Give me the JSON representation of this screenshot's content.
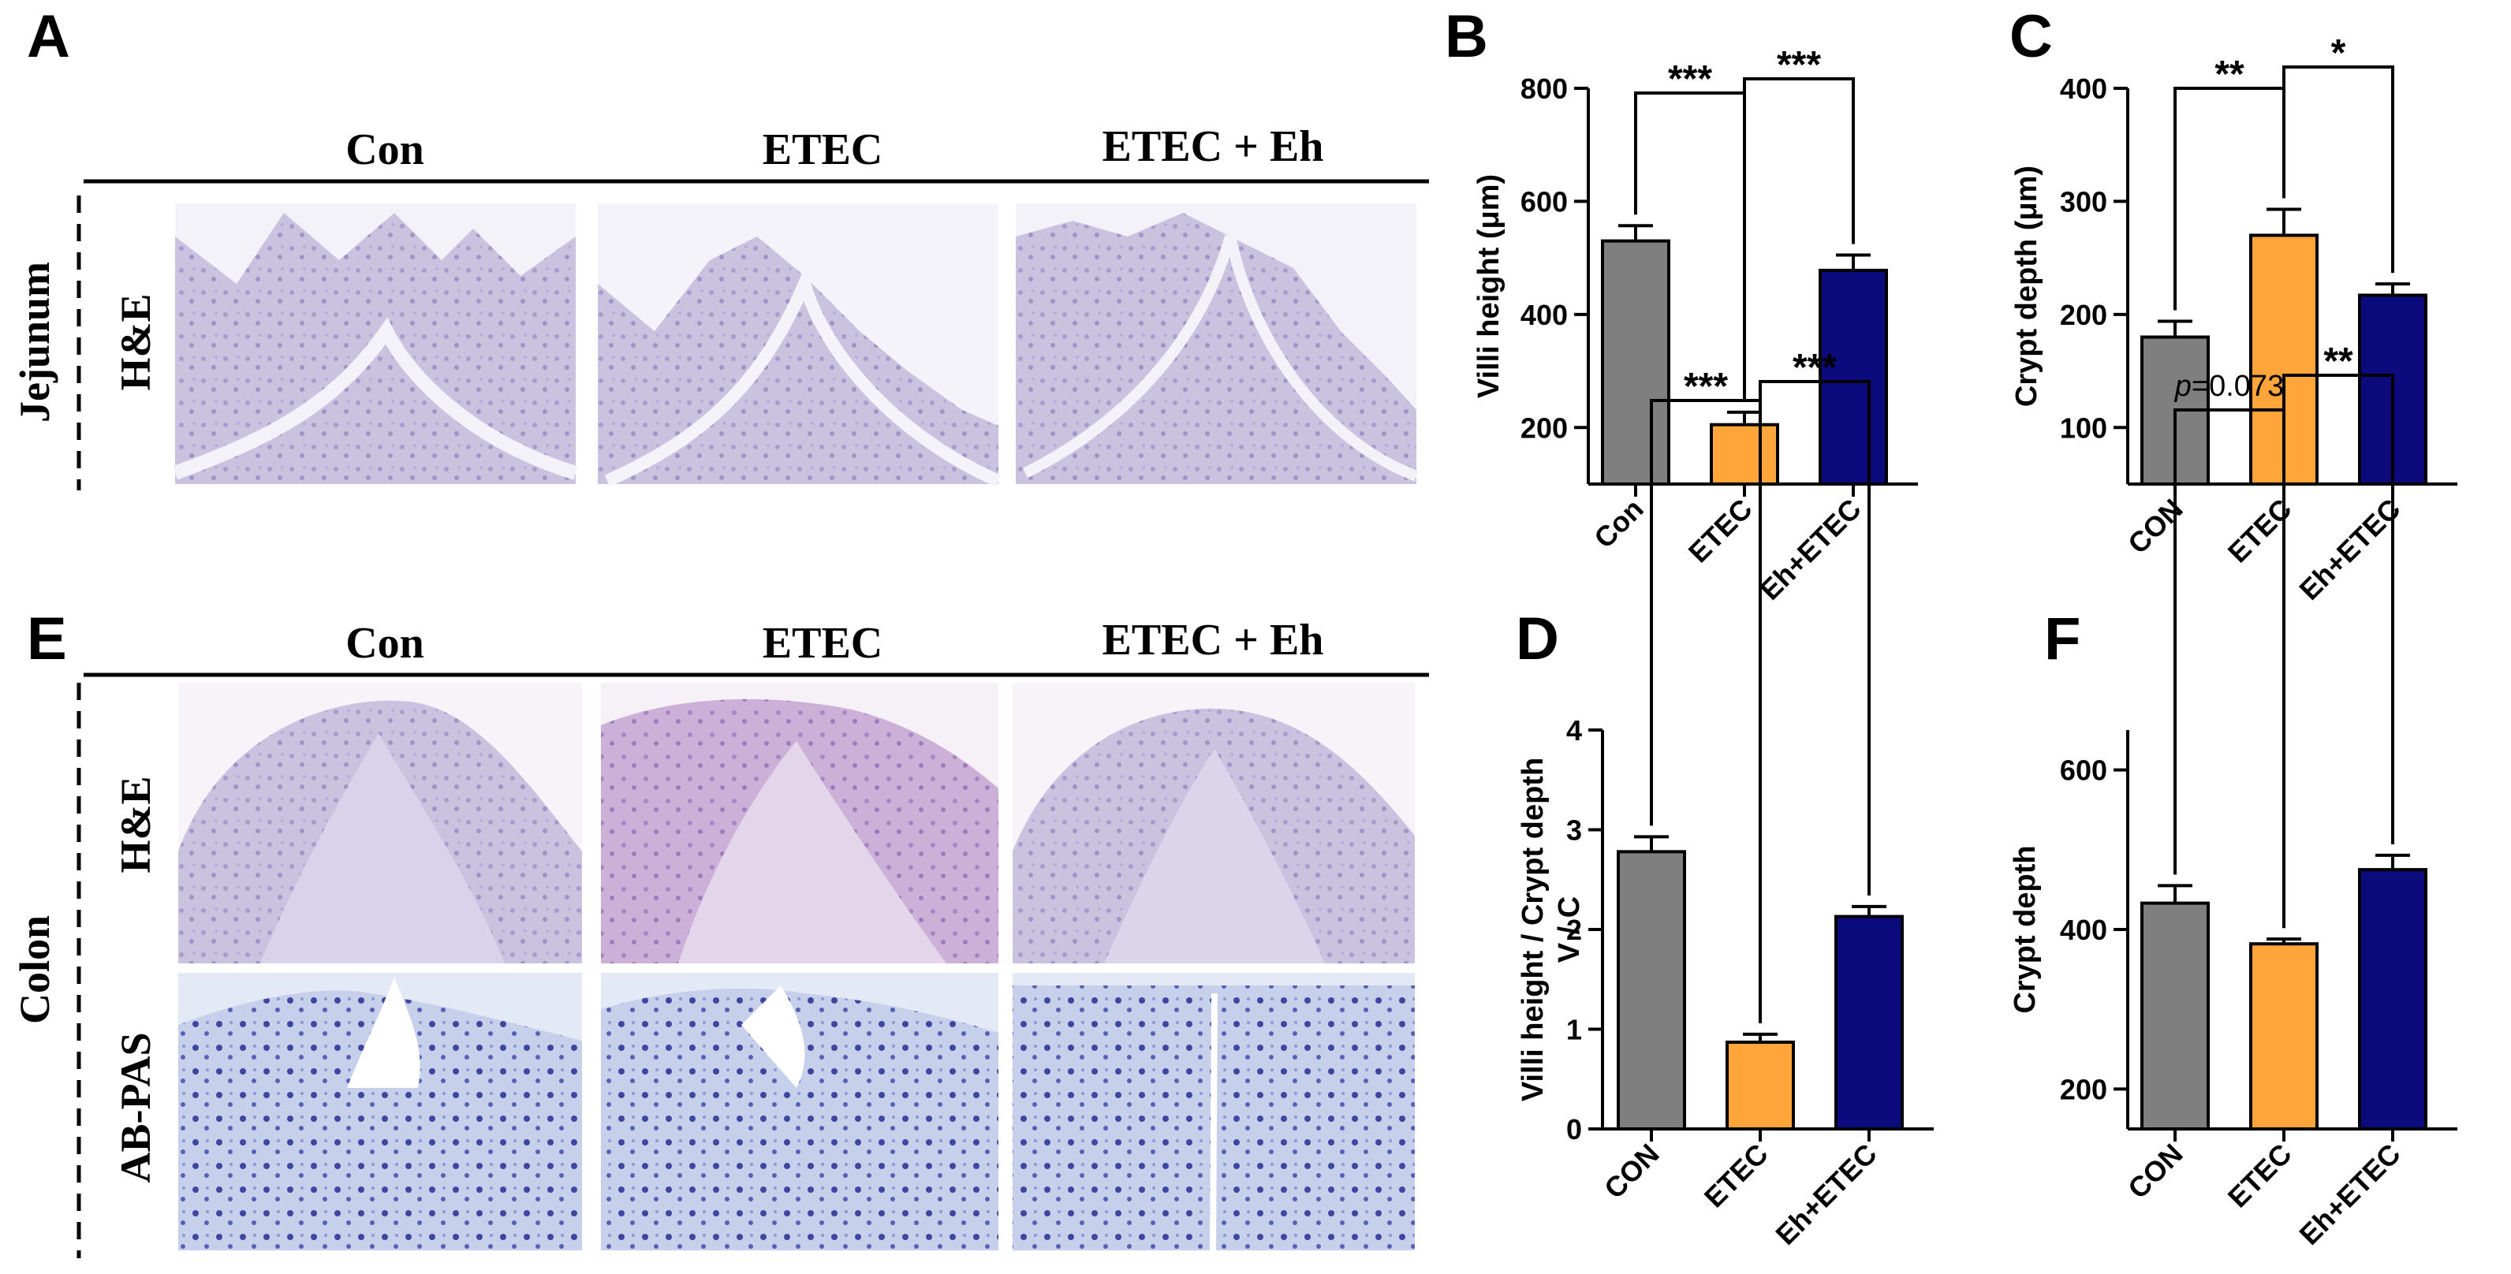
{
  "panels": {
    "A": {
      "letter": "A",
      "columns": [
        "Con",
        "ETEC",
        "ETEC + Eh"
      ],
      "tissue": "Jejunum",
      "stains": [
        "H&E"
      ]
    },
    "E": {
      "letter": "E",
      "columns": [
        "Con",
        "ETEC",
        "ETEC + Eh"
      ],
      "tissue": "Colon",
      "stains": [
        "H&E",
        "AB-PAS"
      ]
    }
  },
  "colors": {
    "gray": "#7f7f7f",
    "orange": "#ffa53a",
    "navy": "#0b0b7e"
  },
  "chart_data": [
    {
      "id": "B",
      "letter": "B",
      "type": "bar",
      "ylabel": "Villi height (μm)",
      "categories": [
        "Con",
        "ETEC",
        "Eh+ETEC"
      ],
      "values": [
        530,
        205,
        478
      ],
      "errors": [
        27,
        22,
        27
      ],
      "ylim": [
        100,
        800
      ],
      "yticks": [
        200,
        400,
        600,
        800
      ],
      "significance": [
        {
          "from": 0,
          "to": 1,
          "label": "***"
        },
        {
          "from": 1,
          "to": 2,
          "label": "***"
        }
      ]
    },
    {
      "id": "C",
      "letter": "C",
      "type": "bar",
      "ylabel": "Crypt depth (μm)",
      "categories": [
        "CON",
        "ETEC",
        "Eh+ETEC"
      ],
      "values": [
        180,
        270,
        217
      ],
      "errors": [
        14,
        23,
        10
      ],
      "ylim": [
        50,
        400
      ],
      "yticks": [
        100,
        200,
        300,
        400
      ],
      "significance": [
        {
          "from": 0,
          "to": 1,
          "label": "**"
        },
        {
          "from": 1,
          "to": 2,
          "label": "*"
        }
      ]
    },
    {
      "id": "D",
      "letter": "D",
      "type": "bar",
      "ylabel": "Villi height / Crypt depth",
      "ylabel2": "V / C",
      "categories": [
        "CON",
        "ETEC",
        "Eh+ETEC"
      ],
      "values": [
        2.78,
        0.87,
        2.13
      ],
      "errors": [
        0.15,
        0.08,
        0.1
      ],
      "ylim": [
        0,
        4
      ],
      "yticks": [
        0,
        1,
        2,
        3,
        4
      ],
      "significance": [
        {
          "from": 0,
          "to": 1,
          "label": "***"
        },
        {
          "from": 1,
          "to": 2,
          "label": "***"
        }
      ]
    },
    {
      "id": "F",
      "letter": "F",
      "type": "bar",
      "ylabel": "Crypt depth",
      "categories": [
        "CON",
        "ETEC",
        "Eh+ETEC"
      ],
      "values": [
        433,
        382,
        475
      ],
      "errors": [
        22,
        6,
        18
      ],
      "ylim": [
        150,
        650
      ],
      "yticks": [
        200,
        400,
        600
      ],
      "significance": [
        {
          "from": 0,
          "to": 1,
          "label": "p=0.073",
          "italic_prefix": "p",
          "rest": "=0.073"
        },
        {
          "from": 1,
          "to": 2,
          "label": "**"
        }
      ]
    }
  ]
}
